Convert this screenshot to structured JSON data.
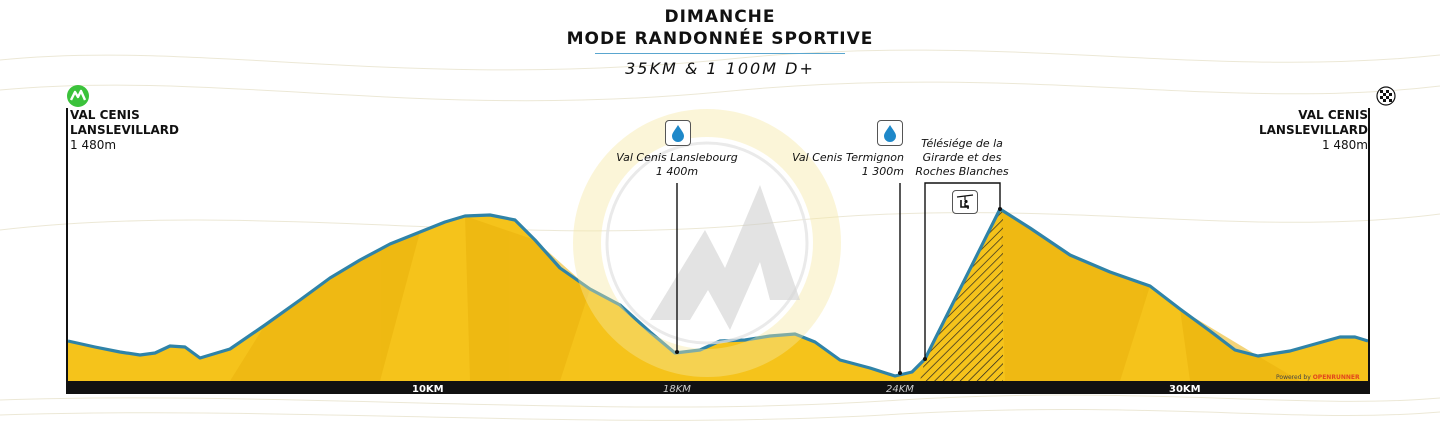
{
  "header": {
    "line1": "DIMANCHE",
    "line2": "MODE RANDONNÉE SPORTIVE",
    "line3": "35KM & 1 100M D+"
  },
  "start": {
    "name_line1": "VAL CENIS",
    "name_line2": "LANSLEVILLARD",
    "altitude": "1 480m",
    "icon": "mountain-logo-icon"
  },
  "finish": {
    "name_line1": "VAL CENIS",
    "name_line2": "LANSLEVILLARD",
    "altitude": "1 480m",
    "icon": "checkered-flag-icon"
  },
  "points": [
    {
      "name": "Val Cenis Lanslebourg",
      "altitude": "1 400m",
      "icon": "water-drop-icon",
      "km_label": "18KM"
    },
    {
      "name": "Val Cenis Termignon",
      "altitude": "1 300m",
      "icon": "water-drop-icon",
      "km_label": "24KM"
    },
    {
      "name_line1": "Télésiége de la",
      "name_line2": "Girarde et des",
      "name_line3": "Roches Blanches",
      "icon": "chairlift-icon"
    }
  ],
  "axis": {
    "markers": [
      {
        "label": "10KM",
        "km": 10
      },
      {
        "label": "18KM",
        "km": 18
      },
      {
        "label": "24KM",
        "km": 24
      },
      {
        "label": "30KM",
        "km": 30
      }
    ]
  },
  "footer": {
    "powered_prefix": "Powered by",
    "powered_brand": "OPENRUNNER"
  },
  "colors": {
    "fill": "#f5c31b",
    "fill_dark": "#eab10c",
    "outline": "#2f83a8",
    "axis": "#111111",
    "watermark": "#f6e7a0"
  }
}
